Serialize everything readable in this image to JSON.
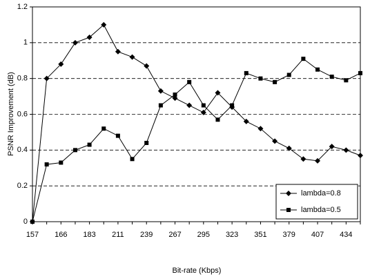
{
  "chart_data": {
    "type": "line",
    "x_label": "Bit-rate (Kbps)",
    "y_label": "PSNR Improvement (dB)",
    "categories": [
      "157",
      null,
      "166",
      null,
      "183",
      null,
      "211",
      null,
      "239",
      null,
      "267",
      null,
      "295",
      null,
      "323",
      null,
      "351",
      null,
      "379",
      null,
      "407",
      null,
      "434",
      null
    ],
    "series": [
      {
        "name": "lambda=0.8",
        "color": "#000000",
        "marker": "diamond",
        "values": [
          0,
          0.8,
          0.88,
          1.0,
          1.03,
          1.1,
          0.95,
          0.92,
          0.87,
          0.73,
          0.69,
          0.65,
          0.61,
          0.72,
          0.64,
          0.56,
          0.52,
          0.45,
          0.41,
          0.35,
          0.34,
          0.42,
          0.4,
          0.37
        ]
      },
      {
        "name": "lambda=0.5",
        "color": "#000000",
        "marker": "square",
        "values": [
          0,
          0.32,
          0.33,
          0.4,
          0.43,
          0.52,
          0.48,
          0.35,
          0.44,
          0.65,
          0.71,
          0.78,
          0.65,
          0.57,
          0.65,
          0.83,
          0.8,
          0.78,
          0.82,
          0.91,
          0.85,
          0.81,
          0.79,
          0.83
        ]
      }
    ],
    "ylim": [
      0,
      1.2
    ],
    "yticks": [
      0,
      0.2,
      0.4,
      0.6,
      0.8,
      1,
      1.2
    ],
    "grid": true,
    "legend": "lower right"
  }
}
